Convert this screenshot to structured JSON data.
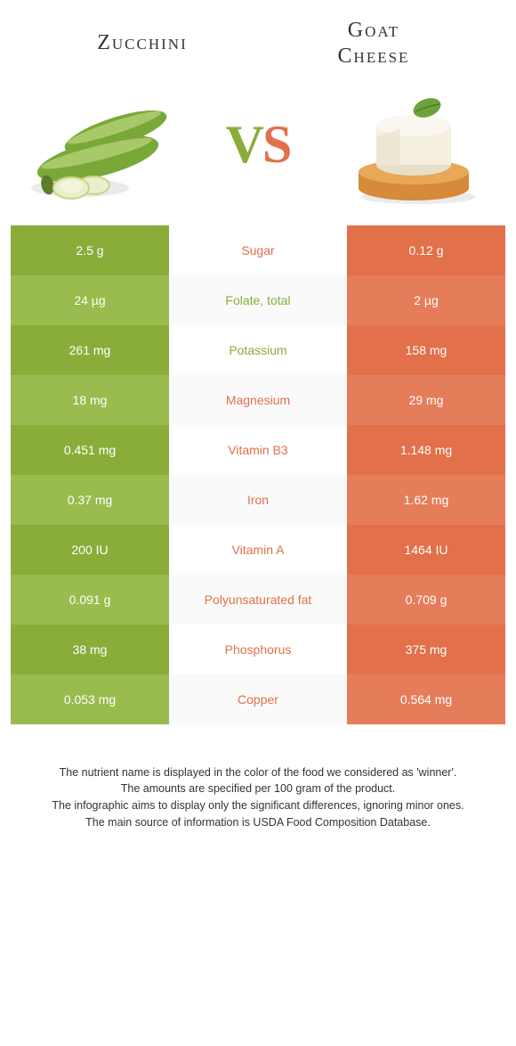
{
  "left": {
    "title": "Zucchini"
  },
  "right": {
    "title_line1": "Goat",
    "title_line2": "Cheese"
  },
  "vs": {
    "v": "V",
    "s": "S"
  },
  "colors": {
    "green": "#8aad3a",
    "green_alt": "#9abb4e",
    "orange": "#e2704b",
    "orange_alt": "#e67d5a"
  },
  "rows": [
    {
      "left": "2.5 g",
      "label": "Sugar",
      "right": "0.12 g",
      "winner": "orange"
    },
    {
      "left": "24 µg",
      "label": "Folate, total",
      "right": "2 µg",
      "winner": "green"
    },
    {
      "left": "261 mg",
      "label": "Potassium",
      "right": "158 mg",
      "winner": "green"
    },
    {
      "left": "18 mg",
      "label": "Magnesium",
      "right": "29 mg",
      "winner": "orange"
    },
    {
      "left": "0.451 mg",
      "label": "Vitamin B3",
      "right": "1.148 mg",
      "winner": "orange"
    },
    {
      "left": "0.37 mg",
      "label": "Iron",
      "right": "1.62 mg",
      "winner": "orange"
    },
    {
      "left": "200 IU",
      "label": "Vitamin A",
      "right": "1464 IU",
      "winner": "orange"
    },
    {
      "left": "0.091 g",
      "label": "Polyunsaturated fat",
      "right": "0.709 g",
      "winner": "orange"
    },
    {
      "left": "38 mg",
      "label": "Phosphorus",
      "right": "375 mg",
      "winner": "orange"
    },
    {
      "left": "0.053 mg",
      "label": "Copper",
      "right": "0.564 mg",
      "winner": "orange"
    }
  ],
  "notes": [
    "The nutrient name is displayed in the color of the food we considered as 'winner'.",
    "The amounts are specified per 100 gram of the product.",
    "The infographic aims to display only the significant differences, ignoring minor ones.",
    "The main source of information is USDA Food Composition Database."
  ]
}
